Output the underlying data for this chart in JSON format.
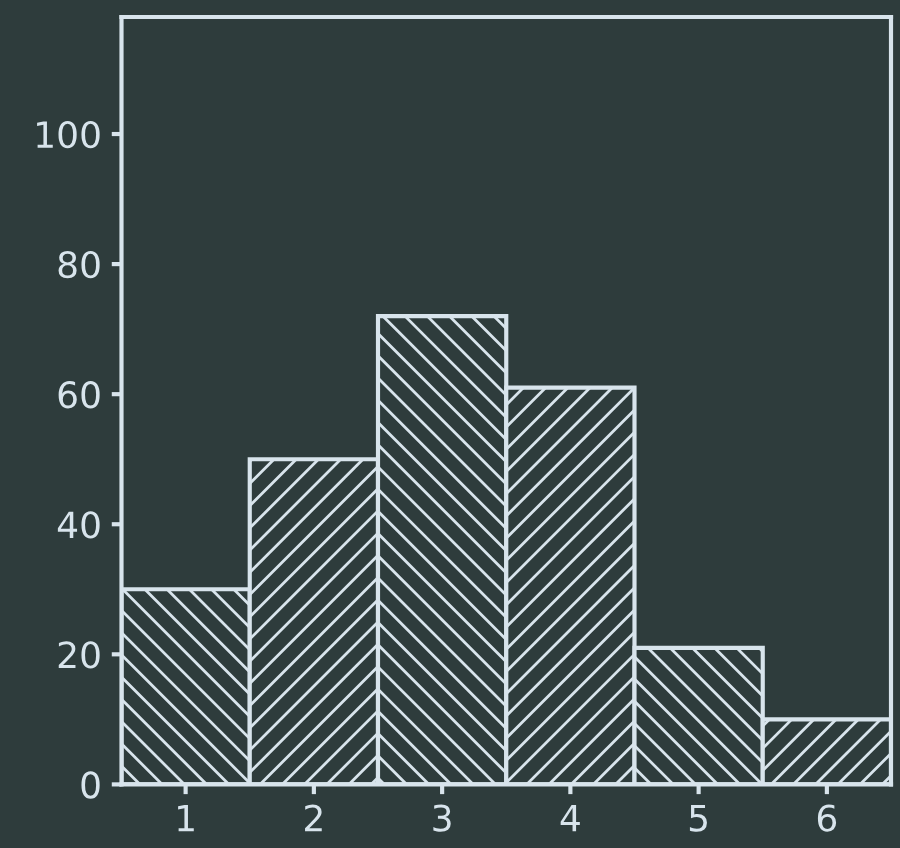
{
  "chart_data": {
    "type": "bar",
    "categories": [
      "1",
      "2",
      "3",
      "4",
      "5",
      "6"
    ],
    "values": [
      30,
      50,
      72,
      61,
      21,
      10
    ],
    "color": "#d8e4ec",
    "ylim": [
      0,
      118
    ],
    "yticks": [
      0,
      20,
      40,
      60,
      80,
      100
    ],
    "grid": false,
    "legend": false
  }
}
